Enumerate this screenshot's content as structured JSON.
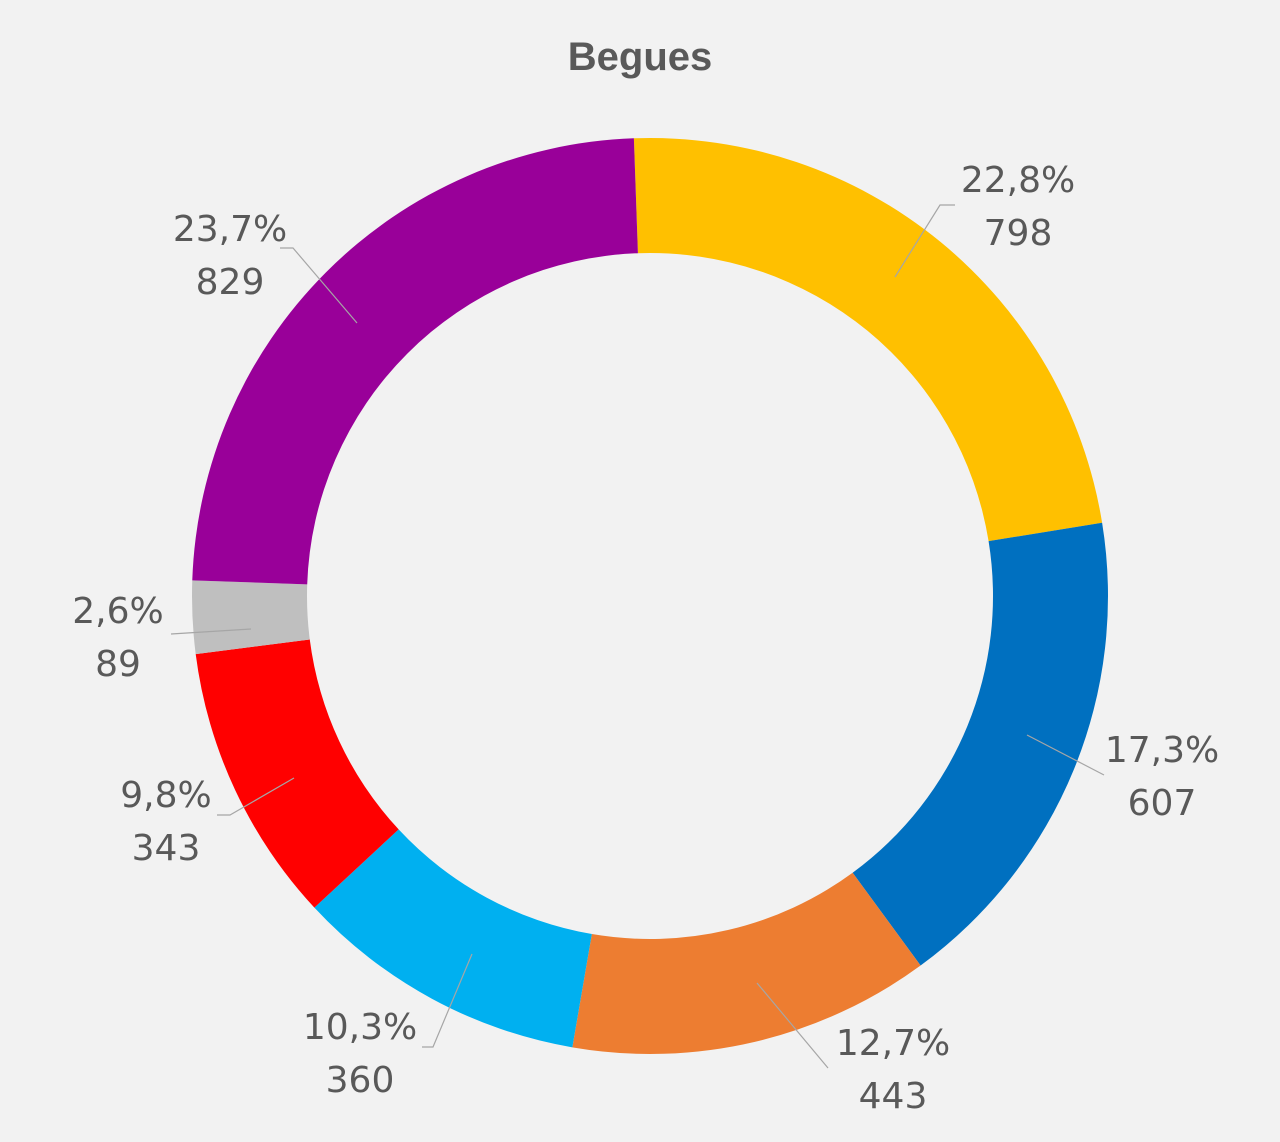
{
  "chart_data": {
    "type": "pie",
    "variant": "donut",
    "title": "Begues",
    "legend": "none",
    "slices": [
      {
        "value": 798,
        "percent_label": "22,8%",
        "value_label": "798",
        "color": "#FFC000"
      },
      {
        "value": 607,
        "percent_label": "17,3%",
        "value_label": "607",
        "color": "#0070C0"
      },
      {
        "value": 443,
        "percent_label": "12,7%",
        "value_label": "443",
        "color": "#ED7D31"
      },
      {
        "value": 360,
        "percent_label": "10,3%",
        "value_label": "360",
        "color": "#00B0F0"
      },
      {
        "value": 343,
        "percent_label": "9,8%",
        "value_label": "343",
        "color": "#FF0000"
      },
      {
        "value": 89,
        "percent_label": "2,6%",
        "value_label": "89",
        "color": "#BFBFBF"
      },
      {
        "value": 829,
        "percent_label": "23,7%",
        "value_label": "829",
        "color": "#990099"
      }
    ]
  }
}
